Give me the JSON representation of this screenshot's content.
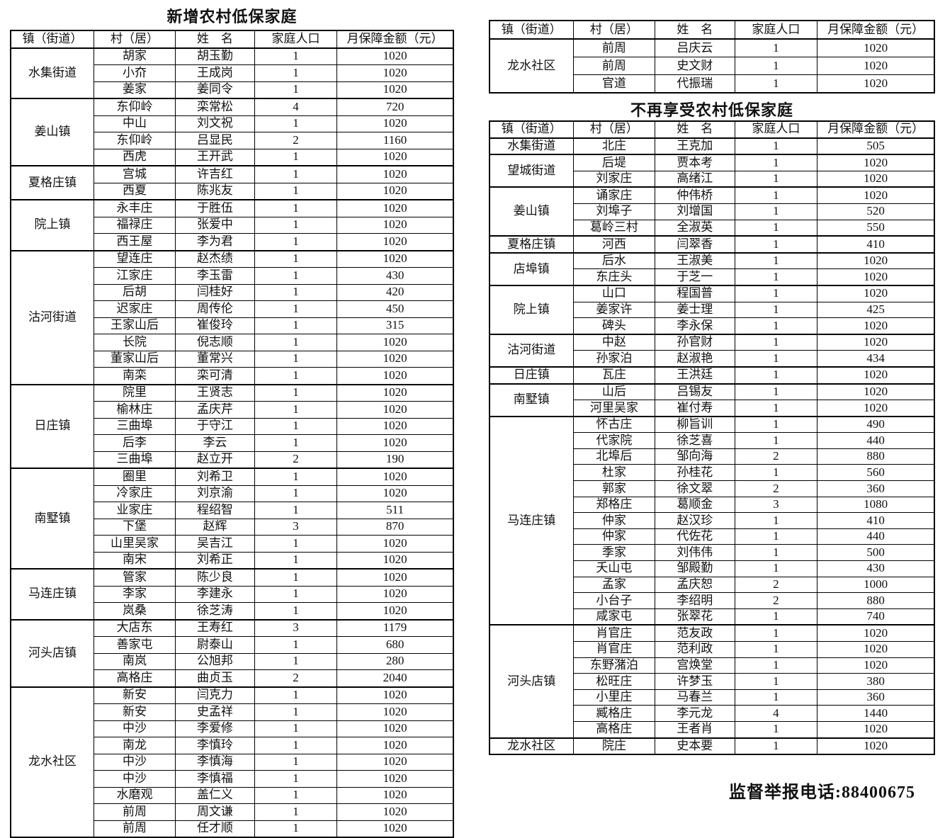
{
  "left_table": {
    "title": "新增农村低保家庭",
    "headers": [
      "镇（街道）",
      "村（居）",
      "姓　名",
      "家庭人口",
      "月保障金额（元）"
    ],
    "groups": [
      {
        "town": "水集街道",
        "rows": [
          [
            "胡家",
            "胡玉勤",
            "1",
            "1020"
          ],
          [
            "小夼",
            "王成岗",
            "1",
            "1020"
          ],
          [
            "姜家",
            "姜同令",
            "1",
            "1020"
          ]
        ]
      },
      {
        "town": "姜山镇",
        "rows": [
          [
            "东仰岭",
            "栾常松",
            "4",
            "720"
          ],
          [
            "中山",
            "刘文祝",
            "1",
            "1020"
          ],
          [
            "东仰岭",
            "吕显民",
            "2",
            "1160"
          ],
          [
            "西虎",
            "王开武",
            "1",
            "1020"
          ]
        ]
      },
      {
        "town": "夏格庄镇",
        "rows": [
          [
            "宫城",
            "许吉红",
            "1",
            "1020"
          ],
          [
            "西夏",
            "陈兆友",
            "1",
            "1020"
          ]
        ]
      },
      {
        "town": "院上镇",
        "rows": [
          [
            "永丰庄",
            "于胜伍",
            "1",
            "1020"
          ],
          [
            "福禄庄",
            "张爱中",
            "1",
            "1020"
          ],
          [
            "西王屋",
            "李为君",
            "1",
            "1020"
          ]
        ]
      },
      {
        "town": "沽河街道",
        "rows": [
          [
            "望连庄",
            "赵杰绩",
            "1",
            "1020"
          ],
          [
            "江家庄",
            "李玉雷",
            "1",
            "430"
          ],
          [
            "后胡",
            "闫桂好",
            "1",
            "420"
          ],
          [
            "迟家庄",
            "周传伦",
            "1",
            "450"
          ],
          [
            "王家山后",
            "崔俊玲",
            "1",
            "315"
          ],
          [
            "长院",
            "倪志顺",
            "1",
            "1020"
          ],
          [
            "董家山后",
            "董常兴",
            "1",
            "1020"
          ],
          [
            "南栾",
            "栾可清",
            "1",
            "1020"
          ]
        ]
      },
      {
        "town": "日庄镇",
        "rows": [
          [
            "院里",
            "王贤志",
            "1",
            "1020"
          ],
          [
            "榆林庄",
            "孟庆芹",
            "1",
            "1020"
          ],
          [
            "三曲埠",
            "于守江",
            "1",
            "1020"
          ],
          [
            "后李",
            "李云",
            "1",
            "1020"
          ],
          [
            "三曲埠",
            "赵立开",
            "2",
            "190"
          ]
        ]
      },
      {
        "town": "南墅镇",
        "rows": [
          [
            "圈里",
            "刘希卫",
            "1",
            "1020"
          ],
          [
            "冷家庄",
            "刘京渝",
            "1",
            "1020"
          ],
          [
            "业家庄",
            "程绍智",
            "1",
            "511"
          ],
          [
            "下堡",
            "赵辉",
            "3",
            "870"
          ],
          [
            "山里吴家",
            "吴吉江",
            "1",
            "1020"
          ],
          [
            "南宋",
            "刘希正",
            "1",
            "1020"
          ]
        ]
      },
      {
        "town": "马连庄镇",
        "rows": [
          [
            "管家",
            "陈少良",
            "1",
            "1020"
          ],
          [
            "李家",
            "李建永",
            "1",
            "1020"
          ],
          [
            "岚桑",
            "徐芝涛",
            "1",
            "1020"
          ]
        ]
      },
      {
        "town": "河头店镇",
        "rows": [
          [
            "大店东",
            "王寿红",
            "3",
            "1179"
          ],
          [
            "善家屯",
            "尉泰山",
            "1",
            "680"
          ],
          [
            "南岚",
            "公旭邦",
            "1",
            "280"
          ],
          [
            "高格庄",
            "曲贞玉",
            "2",
            "2040"
          ]
        ]
      },
      {
        "town": "龙水社区",
        "rows": [
          [
            "新安",
            "闫克力",
            "1",
            "1020"
          ],
          [
            "新安",
            "史孟祥",
            "1",
            "1020"
          ],
          [
            "中沙",
            "李爱修",
            "1",
            "1020"
          ],
          [
            "南龙",
            "李慎玲",
            "1",
            "1020"
          ],
          [
            "中沙",
            "李慎海",
            "1",
            "1020"
          ],
          [
            "中沙",
            "李慎福",
            "1",
            "1020"
          ],
          [
            "水磨观",
            "盖仁义",
            "1",
            "1020"
          ],
          [
            "前周",
            "周文谦",
            "1",
            "1020"
          ],
          [
            "前周",
            "任才顺",
            "1",
            "1020"
          ]
        ]
      }
    ]
  },
  "right_top_table": {
    "headers": [
      "镇（街道）",
      "村（居）",
      "姓　名",
      "家庭人口",
      "月保障金额（元）"
    ],
    "groups": [
      {
        "town": "龙水社区",
        "rows": [
          [
            "前周",
            "吕庆云",
            "1",
            "1020"
          ],
          [
            "前周",
            "史文财",
            "1",
            "1020"
          ],
          [
            "官道",
            "代振瑞",
            "1",
            "1020"
          ]
        ]
      }
    ]
  },
  "right_table": {
    "title": "不再享受农村低保家庭",
    "headers": [
      "镇（街道）",
      "村（居）",
      "姓　名",
      "家庭人口",
      "月保障金额（元）"
    ],
    "groups": [
      {
        "town": "水集街道",
        "rows": [
          [
            "北庄",
            "王克加",
            "1",
            "505"
          ]
        ]
      },
      {
        "town": "望城街道",
        "rows": [
          [
            "后堤",
            "贾本考",
            "1",
            "1020"
          ],
          [
            "刘家庄",
            "高绪江",
            "1",
            "1020"
          ]
        ]
      },
      {
        "town": "姜山镇",
        "rows": [
          [
            "诵家庄",
            "仲伟桥",
            "1",
            "1020"
          ],
          [
            "刘埠子",
            "刘增国",
            "1",
            "520"
          ],
          [
            "葛岭三村",
            "全淑英",
            "1",
            "550"
          ]
        ]
      },
      {
        "town": "夏格庄镇",
        "rows": [
          [
            "河西",
            "闫翠香",
            "1",
            "410"
          ]
        ]
      },
      {
        "town": "店埠镇",
        "rows": [
          [
            "后水",
            "王淑美",
            "1",
            "1020"
          ],
          [
            "东庄头",
            "于芝一",
            "1",
            "1020"
          ]
        ]
      },
      {
        "town": "院上镇",
        "rows": [
          [
            "山口",
            "程国普",
            "1",
            "1020"
          ],
          [
            "姜家许",
            "姜士理",
            "1",
            "425"
          ],
          [
            "碑头",
            "李永保",
            "1",
            "1020"
          ]
        ]
      },
      {
        "town": "沽河街道",
        "rows": [
          [
            "中赵",
            "孙官财",
            "1",
            "1020"
          ],
          [
            "孙家泊",
            "赵淑艳",
            "1",
            "434"
          ]
        ]
      },
      {
        "town": "日庄镇",
        "rows": [
          [
            "瓦庄",
            "王洪廷",
            "1",
            "1020"
          ]
        ]
      },
      {
        "town": "南墅镇",
        "rows": [
          [
            "山后",
            "吕锡友",
            "1",
            "1020"
          ],
          [
            "河里吴家",
            "崔付寿",
            "1",
            "1020"
          ]
        ]
      },
      {
        "town": "马连庄镇",
        "rows": [
          [
            "怀古庄",
            "柳旨训",
            "1",
            "490"
          ],
          [
            "代家院",
            "徐芝喜",
            "1",
            "440"
          ],
          [
            "北埠后",
            "邹向海",
            "2",
            "880"
          ],
          [
            "杜家",
            "孙桂花",
            "1",
            "560"
          ],
          [
            "郭家",
            "徐文翠",
            "2",
            "360"
          ],
          [
            "郑格庄",
            "葛顺金",
            "3",
            "1080"
          ],
          [
            "仲家",
            "赵汉珍",
            "1",
            "410"
          ],
          [
            "仲家",
            "代佐花",
            "1",
            "440"
          ],
          [
            "季家",
            "刘伟伟",
            "1",
            "500"
          ],
          [
            "夭山屯",
            "邹殿勤",
            "1",
            "430"
          ],
          [
            "孟家",
            "孟庆恕",
            "2",
            "1000"
          ],
          [
            "小台子",
            "李绍明",
            "2",
            "880"
          ],
          [
            "咸家屯",
            "张翠花",
            "1",
            "740"
          ]
        ]
      },
      {
        "town": "河头店镇",
        "rows": [
          [
            "肖官庄",
            "范友政",
            "1",
            "1020"
          ],
          [
            "肖官庄",
            "范利政",
            "1",
            "1020"
          ],
          [
            "东野潴泊",
            "宫焕堂",
            "1",
            "1020"
          ],
          [
            "松旺庄",
            "许梦玉",
            "1",
            "380"
          ],
          [
            "小里庄",
            "马春兰",
            "1",
            "360"
          ],
          [
            "臧格庄",
            "李元龙",
            "4",
            "1440"
          ],
          [
            "高格庄",
            "王者肖",
            "1",
            "1020"
          ]
        ]
      },
      {
        "town": "龙水社区",
        "rows": [
          [
            "院庄",
            "史本要",
            "1",
            "1020"
          ]
        ]
      }
    ]
  },
  "footer": {
    "hotline": "监督举报电话:88400675"
  }
}
